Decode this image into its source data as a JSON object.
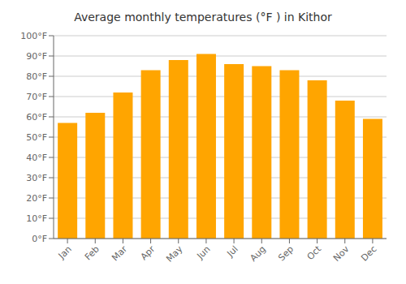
{
  "chart_data": {
    "type": "bar",
    "title": "Average monthly temperatures (°F ) in Kithor",
    "categories": [
      "Jan",
      "Feb",
      "Mar",
      "Apr",
      "May",
      "Jun",
      "Jul",
      "Aug",
      "Sep",
      "Oct",
      "Nov",
      "Dec"
    ],
    "values": [
      57,
      62,
      72,
      83,
      88,
      91,
      86,
      85,
      83,
      78,
      68,
      59
    ],
    "color": "#FFA500",
    "ylim": [
      0,
      100
    ],
    "yticks": [
      {
        "value": 0,
        "label": "0°F"
      },
      {
        "value": 10,
        "label": "10°F"
      },
      {
        "value": 20,
        "label": "20°F"
      },
      {
        "value": 30,
        "label": "30°F"
      },
      {
        "value": 40,
        "label": "40°F"
      },
      {
        "value": 50,
        "label": "50°F"
      },
      {
        "value": 60,
        "label": "60°F"
      },
      {
        "value": 70,
        "label": "70°F"
      },
      {
        "value": 80,
        "label": "80°F"
      },
      {
        "value": 90,
        "label": "90°F"
      },
      {
        "value": 100,
        "label": "100°F"
      }
    ],
    "grid": true
  }
}
